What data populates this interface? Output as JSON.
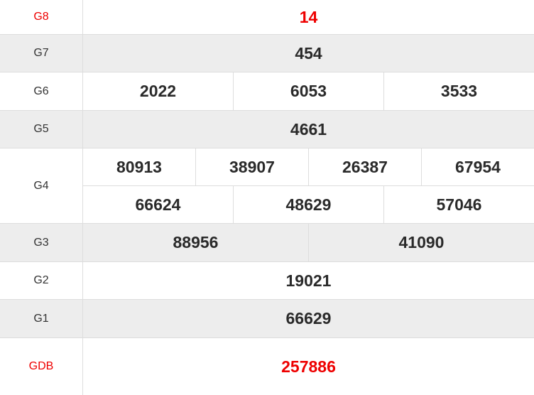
{
  "prizes": [
    {
      "label": "G8",
      "values": [
        "14"
      ],
      "highlight": true
    },
    {
      "label": "G7",
      "values": [
        "454"
      ]
    },
    {
      "label": "G6",
      "values": [
        "2022",
        "6053",
        "3533"
      ]
    },
    {
      "label": "G5",
      "values": [
        "4661"
      ]
    },
    {
      "label": "G4",
      "values": [
        "80913",
        "38907",
        "26387",
        "67954",
        "66624",
        "48629",
        "57046"
      ]
    },
    {
      "label": "G3",
      "values": [
        "88956",
        "41090"
      ]
    },
    {
      "label": "G2",
      "values": [
        "19021"
      ]
    },
    {
      "label": "G1",
      "values": [
        "66629"
      ]
    },
    {
      "label": "GDB",
      "values": [
        "257886"
      ],
      "highlight": true
    }
  ],
  "colors": {
    "highlight": "#ee0000",
    "stripe": "#ededed",
    "border": "#dddddd"
  }
}
